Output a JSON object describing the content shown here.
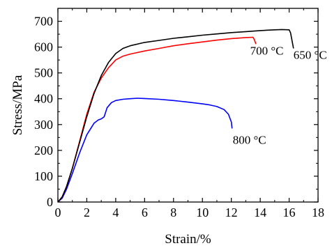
{
  "chart_data": {
    "type": "line",
    "xlabel": "Strain/%",
    "ylabel": "Stress/MPa",
    "xlim": [
      0,
      18
    ],
    "ylim": [
      0,
      750
    ],
    "xticks": [
      "0",
      "2",
      "4",
      "6",
      "8",
      "10",
      "12",
      "14",
      "16",
      "18"
    ],
    "yticks": [
      "0",
      "100",
      "200",
      "300",
      "400",
      "500",
      "600",
      "700"
    ],
    "grid": false,
    "series": [
      {
        "name": "650 °C",
        "color": "#000000",
        "x": [
          0,
          0.3,
          0.6,
          1.0,
          1.5,
          2.0,
          2.5,
          3.0,
          3.5,
          4.0,
          4.5,
          5.0,
          6.0,
          7.0,
          8.0,
          9.0,
          10.0,
          11.0,
          12.0,
          13.0,
          14.0,
          15.0,
          15.5,
          16.0,
          16.1,
          16.2,
          16.3
        ],
        "y": [
          0,
          20,
          60,
          130,
          230,
          330,
          420,
          490,
          540,
          575,
          595,
          605,
          618,
          626,
          634,
          640,
          646,
          651,
          656,
          660,
          664,
          667,
          668,
          667,
          655,
          625,
          595
        ]
      },
      {
        "name": "700 °C",
        "color": "#ff0000",
        "x": [
          0,
          0.3,
          0.6,
          1.0,
          1.5,
          2.0,
          2.5,
          3.0,
          3.5,
          4.0,
          4.5,
          5.0,
          6.0,
          7.0,
          8.0,
          9.0,
          10.0,
          11.0,
          12.0,
          13.0,
          13.5,
          13.6,
          13.7
        ],
        "y": [
          0,
          20,
          60,
          130,
          235,
          340,
          425,
          480,
          520,
          550,
          565,
          573,
          585,
          595,
          605,
          613,
          620,
          627,
          633,
          637,
          638,
          628,
          612
        ]
      },
      {
        "name": "800 °C",
        "color": "#0000ff",
        "x": [
          0,
          0.3,
          0.6,
          1.0,
          1.5,
          2.0,
          2.5,
          2.8,
          3.0,
          3.2,
          3.4,
          3.7,
          4.0,
          4.5,
          5.0,
          5.5,
          6.0,
          7.0,
          8.0,
          9.0,
          10.0,
          10.5,
          11.0,
          11.5,
          11.8,
          12.0,
          12.05
        ],
        "y": [
          0,
          15,
          50,
          110,
          190,
          260,
          305,
          318,
          322,
          330,
          365,
          385,
          393,
          398,
          400,
          402,
          401,
          398,
          393,
          387,
          380,
          376,
          370,
          358,
          340,
          310,
          285
        ]
      }
    ],
    "annotations": [
      {
        "text": "650 °C",
        "x": 16.3,
        "y": 555
      },
      {
        "text": "700 °C",
        "x": 13.3,
        "y": 570
      },
      {
        "text": "800 °C",
        "x": 12.1,
        "y": 225
      }
    ]
  }
}
